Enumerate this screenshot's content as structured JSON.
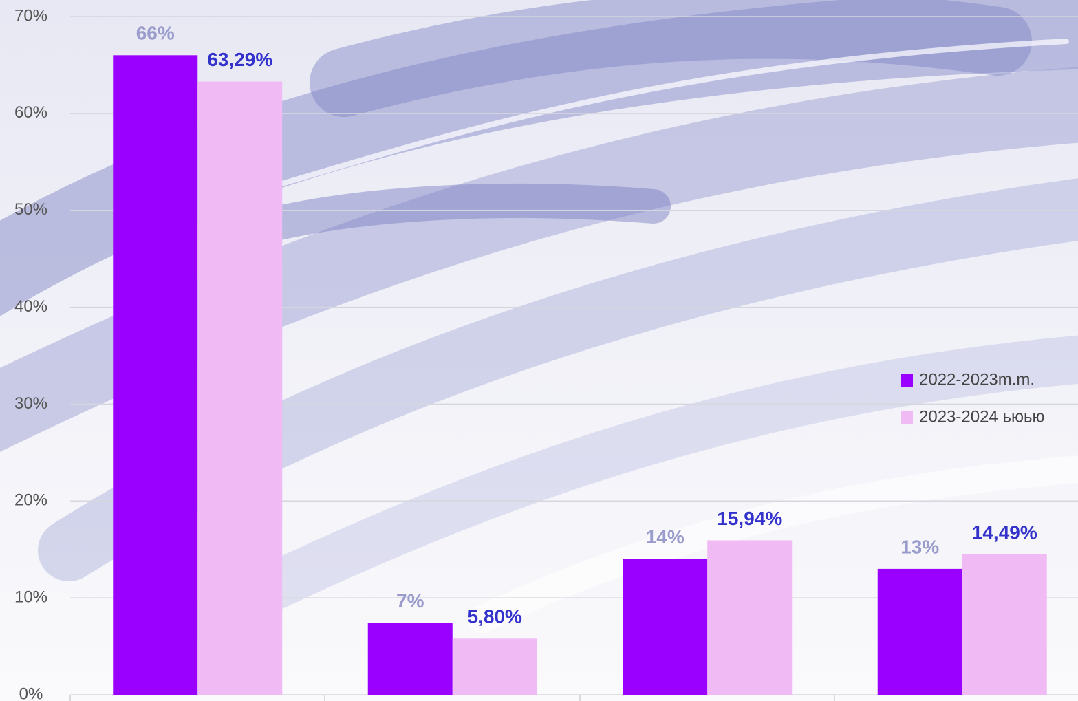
{
  "chart_data": {
    "type": "bar",
    "categories": [
      null,
      null,
      null,
      null
    ],
    "series": [
      {
        "name": "2022-2023m.m.",
        "color": "#9900ff",
        "label_color": "#9a9ccc",
        "values": [
          66,
          7.4,
          14,
          13
        ],
        "value_labels": [
          "66%",
          "7%",
          "14%",
          "13%"
        ]
      },
      {
        "name": "2023-2024 ьюью",
        "color": "#f0baf4",
        "label_color": "#3333cc",
        "values": [
          63.29,
          5.8,
          15.94,
          14.49
        ],
        "value_labels": [
          "63,29%",
          "5,80%",
          "15,94%",
          "14,49%"
        ]
      }
    ],
    "ylim": [
      0,
      70
    ],
    "yticks": [
      {
        "value": 0,
        "label": "0%"
      },
      {
        "value": 10,
        "label": "10%"
      },
      {
        "value": 20,
        "label": "20%"
      },
      {
        "value": 30,
        "label": "30%"
      },
      {
        "value": 40,
        "label": "40%"
      },
      {
        "value": 50,
        "label": "50%"
      },
      {
        "value": 60,
        "label": "60%"
      },
      {
        "value": 70,
        "label": "70%"
      }
    ],
    "grid": true,
    "legend": "right"
  }
}
